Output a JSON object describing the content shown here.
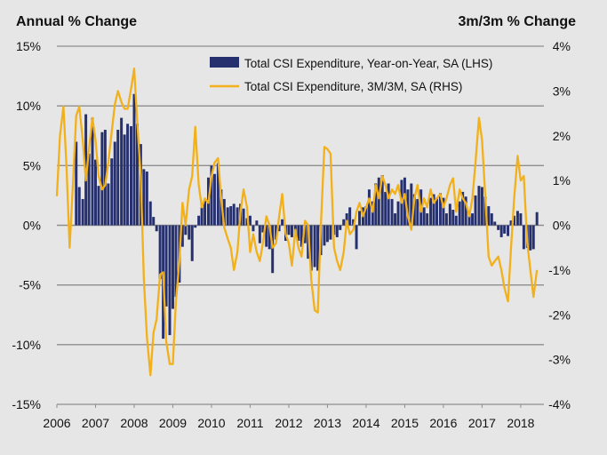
{
  "chart_data": {
    "type": "bar+line",
    "left_axis_title": "Annual % Change",
    "right_axis_title": "3m/3m % Change",
    "left_ylim": [
      -15,
      15
    ],
    "right_ylim": [
      -4,
      4
    ],
    "left_ticks": [
      15,
      10,
      5,
      0,
      -5,
      -10,
      -15
    ],
    "left_tick_labels": [
      "15%",
      "10%",
      "5%",
      "0%",
      "-5%",
      "-10%",
      "-15%"
    ],
    "right_ticks": [
      4,
      3,
      2,
      1,
      0,
      -1,
      -2,
      -3,
      -4
    ],
    "right_tick_labels": [
      "4%",
      "3%",
      "2%",
      "1%",
      "0%",
      "-1%",
      "-2%",
      "-3%",
      "-4%"
    ],
    "x_range": [
      2006,
      2018.6
    ],
    "x_ticks": [
      2006,
      2007,
      2008,
      2009,
      2010,
      2011,
      2012,
      2013,
      2014,
      2015,
      2016,
      2017,
      2018
    ],
    "x_tick_labels": [
      "2006",
      "2007",
      "2008",
      "2009",
      "2010",
      "2011",
      "2012",
      "2013",
      "2014",
      "2015",
      "2016",
      "2017",
      "2018"
    ],
    "grid": "horizontal",
    "legend_position": "top-right",
    "series": [
      {
        "name": "Total CSI Expenditure, Year-on-Year, SA (LHS)",
        "type": "bar",
        "axis": "left",
        "color": "#26306e",
        "points": [
          [
            2006.5,
            7.0
          ],
          [
            2006.58,
            3.2
          ],
          [
            2006.67,
            2.2
          ],
          [
            2006.75,
            9.3
          ],
          [
            2006.83,
            6.0
          ],
          [
            2006.92,
            9.0
          ],
          [
            2007.0,
            5.5
          ],
          [
            2007.08,
            3.3
          ],
          [
            2007.17,
            7.8
          ],
          [
            2007.25,
            8.0
          ],
          [
            2007.33,
            3.5
          ],
          [
            2007.42,
            5.6
          ],
          [
            2007.5,
            7.0
          ],
          [
            2007.58,
            8.0
          ],
          [
            2007.67,
            9.0
          ],
          [
            2007.75,
            7.6
          ],
          [
            2007.83,
            8.5
          ],
          [
            2007.92,
            8.3
          ],
          [
            2008.0,
            11.0
          ],
          [
            2008.08,
            8.5
          ],
          [
            2008.17,
            6.8
          ],
          [
            2008.25,
            4.7
          ],
          [
            2008.33,
            4.5
          ],
          [
            2008.42,
            2.0
          ],
          [
            2008.5,
            0.7
          ],
          [
            2008.58,
            -0.5
          ],
          [
            2008.67,
            -4.5
          ],
          [
            2008.75,
            -9.5
          ],
          [
            2008.83,
            -6.8
          ],
          [
            2008.92,
            -9.2
          ],
          [
            2009.0,
            -7.0
          ],
          [
            2009.08,
            -6.0
          ],
          [
            2009.17,
            -4.8
          ],
          [
            2009.25,
            -1.8
          ],
          [
            2009.33,
            -0.8
          ],
          [
            2009.42,
            -1.2
          ],
          [
            2009.5,
            -3.0
          ],
          [
            2009.58,
            -0.2
          ],
          [
            2009.67,
            0.8
          ],
          [
            2009.75,
            1.5
          ],
          [
            2009.83,
            2.2
          ],
          [
            2009.92,
            4.0
          ],
          [
            2010.0,
            5.0
          ],
          [
            2010.08,
            4.3
          ],
          [
            2010.17,
            5.2
          ],
          [
            2010.25,
            3.0
          ],
          [
            2010.33,
            2.2
          ],
          [
            2010.42,
            1.5
          ],
          [
            2010.5,
            1.6
          ],
          [
            2010.58,
            1.8
          ],
          [
            2010.67,
            1.5
          ],
          [
            2010.75,
            1.8
          ],
          [
            2010.83,
            1.4
          ],
          [
            2010.92,
            0.6
          ],
          [
            2011.0,
            0.8
          ],
          [
            2011.08,
            -0.5
          ],
          [
            2011.17,
            0.4
          ],
          [
            2011.25,
            -1.5
          ],
          [
            2011.33,
            -0.6
          ],
          [
            2011.42,
            -1.8
          ],
          [
            2011.5,
            -2.0
          ],
          [
            2011.58,
            -4.0
          ],
          [
            2011.67,
            -1.2
          ],
          [
            2011.75,
            -0.5
          ],
          [
            2011.83,
            0.5
          ],
          [
            2011.92,
            -1.3
          ],
          [
            2012.0,
            -0.8
          ],
          [
            2012.08,
            -1.0
          ],
          [
            2012.17,
            -0.8
          ],
          [
            2012.25,
            -1.3
          ],
          [
            2012.33,
            -1.8
          ],
          [
            2012.42,
            -1.5
          ],
          [
            2012.5,
            -2.8
          ],
          [
            2012.58,
            -3.8
          ],
          [
            2012.67,
            -3.5
          ],
          [
            2012.75,
            -3.8
          ],
          [
            2012.83,
            -2.5
          ],
          [
            2012.92,
            -1.7
          ],
          [
            2013.0,
            -1.4
          ],
          [
            2013.08,
            -1.2
          ],
          [
            2013.17,
            -0.8
          ],
          [
            2013.25,
            -1.0
          ],
          [
            2013.33,
            -0.4
          ],
          [
            2013.42,
            0.5
          ],
          [
            2013.5,
            1.0
          ],
          [
            2013.58,
            1.5
          ],
          [
            2013.67,
            0.5
          ],
          [
            2013.75,
            -2.0
          ],
          [
            2013.83,
            1.2
          ],
          [
            2013.92,
            1.5
          ],
          [
            2014.0,
            1.6
          ],
          [
            2014.08,
            3.0
          ],
          [
            2014.17,
            2.0
          ],
          [
            2014.25,
            3.5
          ],
          [
            2014.33,
            4.0
          ],
          [
            2014.42,
            4.2
          ],
          [
            2014.5,
            2.8
          ],
          [
            2014.58,
            3.5
          ],
          [
            2014.67,
            2.2
          ],
          [
            2014.75,
            1.0
          ],
          [
            2014.83,
            2.0
          ],
          [
            2014.92,
            3.8
          ],
          [
            2015.0,
            4.0
          ],
          [
            2015.08,
            3.0
          ],
          [
            2015.17,
            3.5
          ],
          [
            2015.25,
            2.6
          ],
          [
            2015.33,
            2.2
          ],
          [
            2015.42,
            3.0
          ],
          [
            2015.5,
            1.5
          ],
          [
            2015.58,
            1.0
          ],
          [
            2015.67,
            2.3
          ],
          [
            2015.75,
            2.6
          ],
          [
            2015.83,
            2.3
          ],
          [
            2015.92,
            2.7
          ],
          [
            2016.0,
            2.3
          ],
          [
            2016.08,
            1.0
          ],
          [
            2016.17,
            1.8
          ],
          [
            2016.25,
            1.3
          ],
          [
            2016.33,
            0.8
          ],
          [
            2016.42,
            2.0
          ],
          [
            2016.5,
            2.8
          ],
          [
            2016.58,
            2.4
          ],
          [
            2016.67,
            1.2
          ],
          [
            2016.75,
            1.0
          ],
          [
            2016.83,
            2.5
          ],
          [
            2016.92,
            3.3
          ],
          [
            2017.0,
            3.2
          ],
          [
            2017.08,
            2.4
          ],
          [
            2017.17,
            1.6
          ],
          [
            2017.25,
            1.0
          ],
          [
            2017.33,
            0.3
          ],
          [
            2017.42,
            -0.4
          ],
          [
            2017.5,
            -1.0
          ],
          [
            2017.58,
            -0.7
          ],
          [
            2017.67,
            -0.9
          ],
          [
            2017.75,
            0.4
          ],
          [
            2017.83,
            0.8
          ],
          [
            2017.92,
            1.2
          ],
          [
            2018.0,
            1.0
          ],
          [
            2018.08,
            -2.0
          ],
          [
            2018.17,
            -1.9
          ],
          [
            2018.25,
            -2.1
          ],
          [
            2018.33,
            -2.0
          ],
          [
            2018.42,
            1.1
          ]
        ]
      },
      {
        "name": "Total CSI Expenditure, 3M/3M, SA (RHS)",
        "type": "line",
        "axis": "right",
        "color": "#f2b01b",
        "points": [
          [
            2006.0,
            0.65
          ],
          [
            2006.08,
            2.0
          ],
          [
            2006.17,
            2.65
          ],
          [
            2006.25,
            1.3
          ],
          [
            2006.33,
            -0.5
          ],
          [
            2006.42,
            1.0
          ],
          [
            2006.5,
            2.45
          ],
          [
            2006.58,
            2.65
          ],
          [
            2006.67,
            1.9
          ],
          [
            2006.75,
            1.0
          ],
          [
            2006.83,
            1.7
          ],
          [
            2006.92,
            2.4
          ],
          [
            2007.0,
            1.9
          ],
          [
            2007.08,
            1.1
          ],
          [
            2007.17,
            0.8
          ],
          [
            2007.25,
            0.9
          ],
          [
            2007.33,
            1.4
          ],
          [
            2007.42,
            2.1
          ],
          [
            2007.5,
            2.7
          ],
          [
            2007.58,
            3.0
          ],
          [
            2007.67,
            2.75
          ],
          [
            2007.75,
            2.6
          ],
          [
            2007.83,
            2.6
          ],
          [
            2007.92,
            3.05
          ],
          [
            2008.0,
            3.5
          ],
          [
            2008.08,
            2.3
          ],
          [
            2008.17,
            1.1
          ],
          [
            2008.25,
            -1.2
          ],
          [
            2008.33,
            -2.5
          ],
          [
            2008.42,
            -3.35
          ],
          [
            2008.5,
            -2.4
          ],
          [
            2008.58,
            -2.1
          ],
          [
            2008.67,
            -1.1
          ],
          [
            2008.75,
            -1.05
          ],
          [
            2008.83,
            -2.6
          ],
          [
            2008.92,
            -3.1
          ],
          [
            2009.0,
            -3.1
          ],
          [
            2009.08,
            -1.7
          ],
          [
            2009.17,
            -0.8
          ],
          [
            2009.25,
            0.5
          ],
          [
            2009.33,
            0.0
          ],
          [
            2009.42,
            0.8
          ],
          [
            2009.5,
            1.1
          ],
          [
            2009.58,
            2.2
          ],
          [
            2009.67,
            0.9
          ],
          [
            2009.75,
            0.4
          ],
          [
            2009.83,
            0.6
          ],
          [
            2009.92,
            0.5
          ],
          [
            2010.0,
            1.1
          ],
          [
            2010.08,
            1.4
          ],
          [
            2010.17,
            1.5
          ],
          [
            2010.25,
            0.6
          ],
          [
            2010.33,
            -0.05
          ],
          [
            2010.42,
            -0.3
          ],
          [
            2010.5,
            -0.5
          ],
          [
            2010.58,
            -1.0
          ],
          [
            2010.67,
            -0.6
          ],
          [
            2010.75,
            0.3
          ],
          [
            2010.83,
            0.8
          ],
          [
            2010.92,
            0.4
          ],
          [
            2011.0,
            -0.6
          ],
          [
            2011.08,
            -0.2
          ],
          [
            2011.17,
            -0.6
          ],
          [
            2011.25,
            -0.8
          ],
          [
            2011.33,
            -0.4
          ],
          [
            2011.42,
            0.2
          ],
          [
            2011.5,
            0.0
          ],
          [
            2011.58,
            -0.5
          ],
          [
            2011.67,
            -0.4
          ],
          [
            2011.75,
            0.2
          ],
          [
            2011.83,
            0.7
          ],
          [
            2011.92,
            -0.2
          ],
          [
            2012.0,
            -0.4
          ],
          [
            2012.08,
            -0.9
          ],
          [
            2012.17,
            -0.1
          ],
          [
            2012.25,
            -0.5
          ],
          [
            2012.33,
            -0.7
          ],
          [
            2012.42,
            0.1
          ],
          [
            2012.5,
            0.0
          ],
          [
            2012.58,
            -1.2
          ],
          [
            2012.67,
            -1.9
          ],
          [
            2012.75,
            -1.95
          ],
          [
            2012.83,
            0.0
          ],
          [
            2012.92,
            1.75
          ],
          [
            2013.0,
            1.7
          ],
          [
            2013.08,
            1.6
          ],
          [
            2013.17,
            -0.5
          ],
          [
            2013.25,
            -0.8
          ],
          [
            2013.33,
            -1.0
          ],
          [
            2013.42,
            -0.6
          ],
          [
            2013.5,
            0.1
          ],
          [
            2013.58,
            -0.2
          ],
          [
            2013.67,
            -0.1
          ],
          [
            2013.75,
            0.3
          ],
          [
            2013.83,
            0.5
          ],
          [
            2013.92,
            0.2
          ],
          [
            2014.0,
            0.4
          ],
          [
            2014.08,
            0.6
          ],
          [
            2014.17,
            0.3
          ],
          [
            2014.25,
            0.9
          ],
          [
            2014.33,
            0.6
          ],
          [
            2014.42,
            1.1
          ],
          [
            2014.5,
            0.9
          ],
          [
            2014.58,
            0.6
          ],
          [
            2014.67,
            0.8
          ],
          [
            2014.75,
            0.7
          ],
          [
            2014.83,
            0.9
          ],
          [
            2014.92,
            0.5
          ],
          [
            2015.0,
            0.7
          ],
          [
            2015.08,
            0.2
          ],
          [
            2015.17,
            -0.1
          ],
          [
            2015.25,
            0.6
          ],
          [
            2015.33,
            0.9
          ],
          [
            2015.42,
            0.3
          ],
          [
            2015.5,
            0.6
          ],
          [
            2015.58,
            0.4
          ],
          [
            2015.67,
            0.8
          ],
          [
            2015.75,
            0.5
          ],
          [
            2015.83,
            0.6
          ],
          [
            2015.92,
            0.7
          ],
          [
            2016.0,
            0.4
          ],
          [
            2016.08,
            0.6
          ],
          [
            2016.17,
            0.9
          ],
          [
            2016.25,
            1.05
          ],
          [
            2016.33,
            0.3
          ],
          [
            2016.42,
            0.8
          ],
          [
            2016.5,
            0.6
          ],
          [
            2016.58,
            0.5
          ],
          [
            2016.67,
            0.2
          ],
          [
            2016.75,
            0.6
          ],
          [
            2016.83,
            1.4
          ],
          [
            2016.92,
            2.4
          ],
          [
            2017.0,
            1.9
          ],
          [
            2017.08,
            0.7
          ],
          [
            2017.17,
            -0.7
          ],
          [
            2017.25,
            -0.9
          ],
          [
            2017.33,
            -0.8
          ],
          [
            2017.42,
            -0.7
          ],
          [
            2017.5,
            -1.0
          ],
          [
            2017.58,
            -1.4
          ],
          [
            2017.67,
            -1.7
          ],
          [
            2017.75,
            -0.5
          ],
          [
            2017.83,
            0.6
          ],
          [
            2017.92,
            1.55
          ],
          [
            2018.0,
            1.0
          ],
          [
            2018.08,
            1.1
          ],
          [
            2018.17,
            -0.4
          ],
          [
            2018.25,
            -1.0
          ],
          [
            2018.33,
            -1.6
          ],
          [
            2018.42,
            -1.0
          ]
        ]
      }
    ]
  }
}
